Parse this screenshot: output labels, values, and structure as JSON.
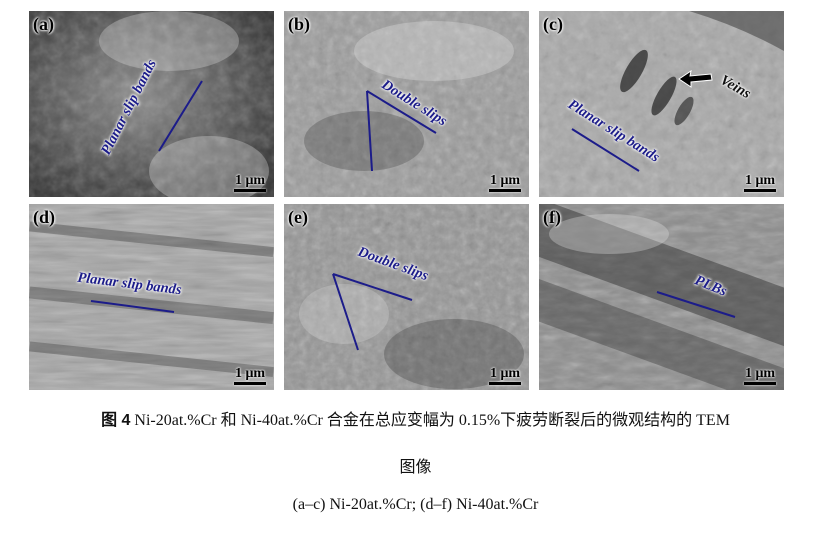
{
  "figure": {
    "panels": [
      {
        "id": "a",
        "label": "(a)",
        "scale": "1 μm",
        "annotations": [
          "Planar slip bands"
        ]
      },
      {
        "id": "b",
        "label": "(b)",
        "scale": "1 μm",
        "annotations": [
          "Double slips"
        ]
      },
      {
        "id": "c",
        "label": "(c)",
        "scale": "1 μm",
        "annotations": [
          "Veins",
          "Planar slip bands"
        ]
      },
      {
        "id": "d",
        "label": "(d)",
        "scale": "1 μm",
        "annotations": [
          "Planar slip bands"
        ]
      },
      {
        "id": "e",
        "label": "(e)",
        "scale": "1 μm",
        "annotations": [
          "Double slips"
        ]
      },
      {
        "id": "f",
        "label": "(f)",
        "scale": "1 μm",
        "annotations": [
          "PLBs"
        ]
      }
    ],
    "annotation_color": "#1c1c8a"
  },
  "caption": {
    "fig_number": "图 4",
    "text": "Ni-20at.%Cr 和 Ni-40at.%Cr 合金在总应变幅为 0.15%下疲劳断裂后的微观结构的 TEM",
    "text_cont": "图像",
    "subtitle": "(a–c) Ni-20at.%Cr; (d–f) Ni-40at.%Cr"
  }
}
